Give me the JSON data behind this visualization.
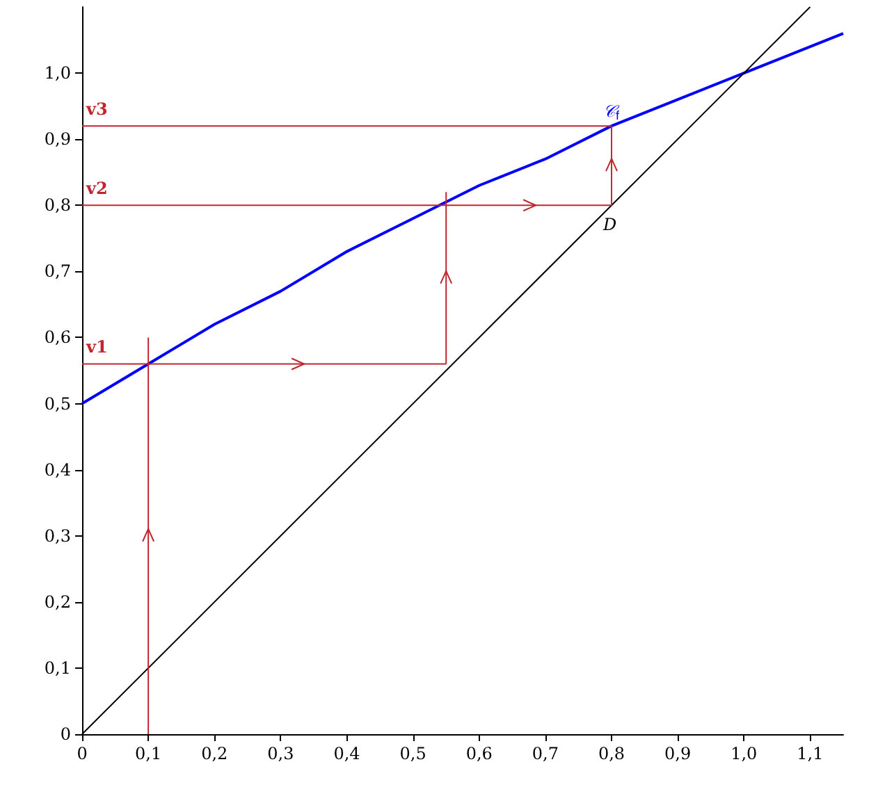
{
  "chart_data": {
    "type": "line",
    "xlim": [
      0,
      1.15
    ],
    "ylim": [
      0,
      1.1
    ],
    "xticks": [
      0,
      {
        "value": 0.1,
        "label": "0,1"
      },
      {
        "value": 0.2,
        "label": "0,2"
      },
      {
        "value": 0.3,
        "label": "0,3"
      },
      {
        "value": 0.4,
        "label": "0,4"
      },
      {
        "value": 0.5,
        "label": "0,5"
      },
      {
        "value": 0.6,
        "label": "0,6"
      },
      {
        "value": 0.7,
        "label": "0,7"
      },
      {
        "value": 0.8,
        "label": "0,8"
      },
      {
        "value": 0.9,
        "label": "0,9"
      },
      {
        "value": 1,
        "label": "1,0"
      },
      {
        "value": 1.1,
        "label": "1,1"
      }
    ],
    "yticks": [
      0,
      {
        "value": 0.1,
        "label": "0,1"
      },
      {
        "value": 0.2,
        "label": "0,2"
      },
      {
        "value": 0.3,
        "label": "0,3"
      },
      {
        "value": 0.4,
        "label": "0,4"
      },
      {
        "value": 0.5,
        "label": "0,5"
      },
      {
        "value": 0.6,
        "label": "0,6"
      },
      {
        "value": 0.7,
        "label": "0,7"
      },
      {
        "value": 0.8,
        "label": "0,8"
      },
      {
        "value": 0.9,
        "label": "0,9"
      },
      {
        "value": 1,
        "label": "1,0"
      }
    ],
    "grid": false,
    "marker": "none",
    "line_style": "solid",
    "series": [
      {
        "color": "#0000ff",
        "x": [
          0,
          0.1,
          0.2,
          0.3,
          0.4,
          0.5,
          0.6,
          0.7,
          0.8,
          0.9,
          1,
          1.1,
          1.15
        ],
        "values": [
          0.5,
          0.56,
          0.62,
          0.67,
          0.73,
          0.78,
          0.83,
          0.87,
          0.92,
          0.96,
          1,
          1.04,
          1.06
        ]
      },
      {
        "color": "#000000",
        "x": [
          0,
          1.1
        ],
        "values": [
          0,
          1.1
        ]
      },
      {
        "color": "#c0262d",
        "x": [
          0.1,
          0.1
        ],
        "values": [
          0,
          0.6
        ]
      },
      {
        "color": "#c0262d",
        "x": [
          0,
          0.55
        ],
        "values": [
          0.56,
          0.56
        ]
      },
      {
        "color": "#c0262d",
        "x": [
          0.55,
          0.55
        ],
        "values": [
          0.56,
          0.82
        ]
      },
      {
        "color": "#c0262d",
        "x": [
          0,
          0.8
        ],
        "values": [
          0.8,
          0.8
        ]
      },
      {
        "color": "#c0262d",
        "x": [
          0.8,
          0.8
        ],
        "values": [
          0.8,
          0.92
        ]
      },
      {
        "color": "#c0262d",
        "x": [
          0,
          0.8
        ],
        "values": [
          0.92,
          0.92
        ]
      }
    ],
    "annotations": [
      {
        "text": "v1",
        "y": 0.56
      },
      {
        "text": "v2",
        "y": 0.8
      },
      {
        "text": "v3",
        "y": 0.92
      },
      {
        "text": "𝒞$_{f}$",
        "x": 0.8,
        "y": 0.92
      },
      {
        "text": "D",
        "x": 0.8,
        "y": 0.8
      }
    ]
  }
}
